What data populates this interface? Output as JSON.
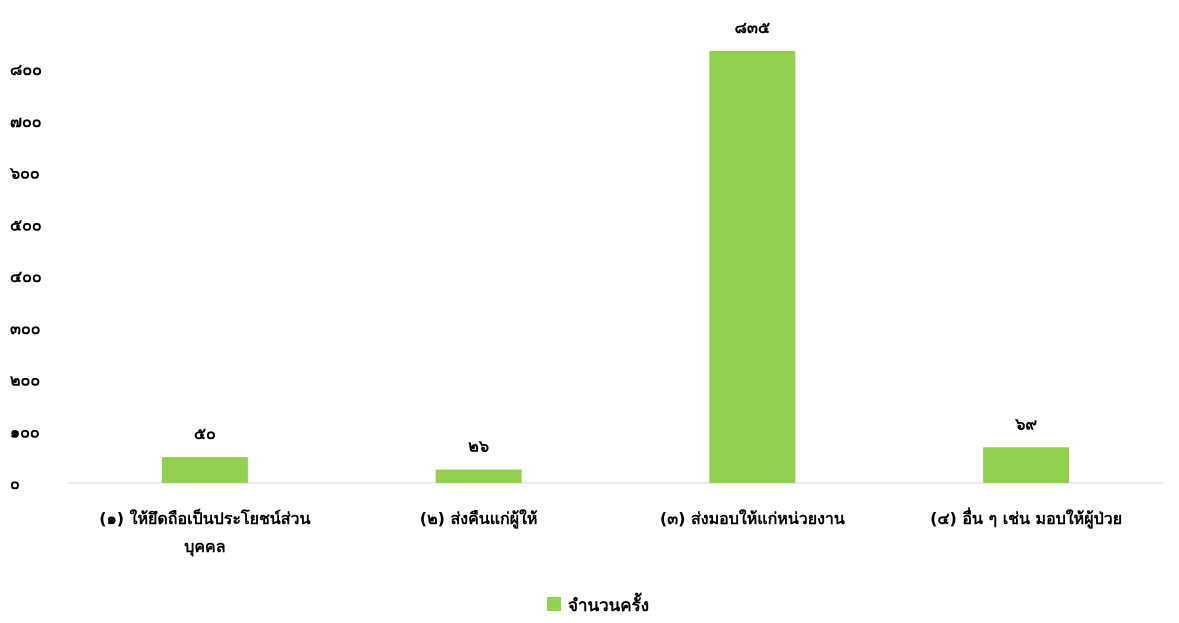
{
  "chart_data": {
    "type": "bar",
    "categories": [
      "(๑) ให้ยึดถือเป็นประโยชน์ส่วนบุคคล",
      "(๒) ส่งคืนแก่ผู้ให้",
      "(๓) ส่งมอบให้แก่หน่วยงาน",
      "(๔) อื่น ๆ เช่น มอบให้ผู้ป่วย"
    ],
    "category_lines": [
      [
        "(๑) ให้ยึดถือเป็นประโยชน์ส่วน",
        "บุคคล"
      ],
      [
        "(๒) ส่งคืนแก่ผู้ให้"
      ],
      [
        "(๓) ส่งมอบให้แก่หน่วยงาน"
      ],
      [
        "(๔) อื่น ๆ เช่น มอบให้ผู้ป่วย"
      ]
    ],
    "series": [
      {
        "name": "จำนวนครั้ง",
        "values": [
          50,
          26,
          835,
          69
        ],
        "value_labels": [
          "๕๐",
          "๒๖",
          "๘๓๕",
          "๖๙"
        ],
        "color": "#92d050"
      }
    ],
    "ylim": [
      0,
      850
    ],
    "y_ticks": [
      0,
      100,
      200,
      300,
      400,
      500,
      600,
      700,
      800
    ],
    "y_tick_labels": [
      "๐",
      "๑๐๐",
      "๒๐๐",
      "๓๐๐",
      "๔๐๐",
      "๕๐๐",
      "๖๐๐",
      "๗๐๐",
      "๘๐๐"
    ],
    "grid": false,
    "legend_position": "bottom",
    "axis_color": "#d9d9d9"
  }
}
